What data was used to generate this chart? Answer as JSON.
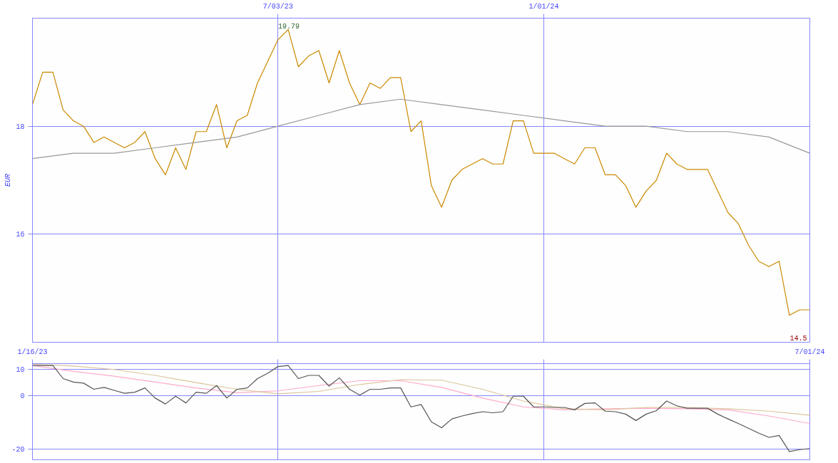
{
  "chart_data": [
    {
      "type": "line",
      "ylabel": "EUR",
      "x": [
        "2023-01-16",
        "2023-01-23",
        "2023-01-30",
        "2023-02-06",
        "2023-02-13",
        "2023-02-20",
        "2023-02-27",
        "2023-03-06",
        "2023-03-13",
        "2023-03-20",
        "2023-03-27",
        "2023-04-03",
        "2023-04-10",
        "2023-04-17",
        "2023-04-24",
        "2023-05-01",
        "2023-05-08",
        "2023-05-15",
        "2023-05-22",
        "2023-05-29",
        "2023-06-05",
        "2023-06-12",
        "2023-06-19",
        "2023-06-26",
        "2023-07-03",
        "2023-07-10",
        "2023-07-17",
        "2023-07-24",
        "2023-07-31",
        "2023-08-07",
        "2023-08-14",
        "2023-08-21",
        "2023-08-28",
        "2023-09-04",
        "2023-09-11",
        "2023-09-18",
        "2023-09-25",
        "2023-10-02",
        "2023-10-09",
        "2023-10-16",
        "2023-10-23",
        "2023-10-30",
        "2023-11-06",
        "2023-11-13",
        "2023-11-20",
        "2023-11-27",
        "2023-12-04",
        "2023-12-11",
        "2023-12-18",
        "2023-12-25",
        "2024-01-01",
        "2024-01-08",
        "2024-01-15",
        "2024-01-22",
        "2024-01-29",
        "2024-02-05",
        "2024-02-12",
        "2024-02-19",
        "2024-02-26",
        "2024-03-04",
        "2024-03-11",
        "2024-03-18",
        "2024-03-25",
        "2024-04-01",
        "2024-04-08",
        "2024-04-15",
        "2024-04-22",
        "2024-04-29",
        "2024-05-06",
        "2024-05-13",
        "2024-05-20",
        "2024-05-27",
        "2024-06-03",
        "2024-06-10",
        "2024-06-17",
        "2024-06-24",
        "2024-07-01"
      ],
      "series": [
        {
          "color": "#cc8800",
          "values": [
            18.4,
            19.0,
            19.0,
            18.3,
            18.1,
            18.0,
            17.7,
            17.8,
            17.7,
            17.6,
            17.7,
            17.9,
            17.4,
            17.1,
            17.6,
            17.2,
            17.9,
            17.9,
            18.4,
            17.6,
            18.1,
            18.2,
            18.8,
            19.2,
            19.6,
            19.79,
            19.1,
            19.3,
            19.4,
            18.8,
            19.4,
            18.8,
            18.4,
            18.8,
            18.7,
            18.9,
            18.9,
            17.9,
            18.1,
            16.9,
            16.5,
            17.0,
            17.2,
            17.3,
            17.4,
            17.3,
            17.3,
            18.1,
            18.1,
            17.5,
            17.5,
            17.5,
            17.4,
            17.3,
            17.6,
            17.6,
            17.1,
            17.1,
            16.9,
            16.5,
            16.8,
            17.0,
            17.5,
            17.3,
            17.2,
            17.2,
            17.2,
            16.8,
            16.4,
            16.2,
            15.8,
            15.5,
            15.4,
            15.5,
            14.5,
            14.6,
            14.6
          ]
        },
        {
          "color": "#999999",
          "x": [
            "2023-01-16",
            "2023-02-13",
            "2023-03-13",
            "2023-04-10",
            "2023-05-08",
            "2023-06-05",
            "2023-07-03",
            "2023-07-31",
            "2023-08-28",
            "2023-09-25",
            "2023-10-23",
            "2023-11-20",
            "2023-12-18",
            "2024-01-15",
            "2024-02-12",
            "2024-03-11",
            "2024-04-08",
            "2024-05-06",
            "2024-06-03",
            "2024-07-01"
          ],
          "values": [
            17.4,
            17.5,
            17.5,
            17.6,
            17.7,
            17.8,
            18.0,
            18.2,
            18.4,
            18.5,
            18.4,
            18.3,
            18.2,
            18.1,
            18.0,
            18.0,
            17.9,
            17.9,
            17.8,
            17.5
          ]
        }
      ],
      "xlim": [
        "2023-01-16",
        "2024-07-01"
      ],
      "ylim": [
        14.0,
        20.0
      ],
      "xticks": [
        {
          "value": "2023-07-03",
          "label": "7/03/23"
        },
        {
          "value": "2024-01-01",
          "label": "1/01/24"
        }
      ],
      "yticks": [
        16,
        18
      ],
      "grid": true,
      "annotations": [
        {
          "text": "19.79",
          "x": "2023-07-10",
          "y": 19.79
        },
        "14.5"
      ]
    },
    {
      "type": "line",
      "x": [
        "2023-01-16",
        "2023-01-23",
        "2023-01-30",
        "2023-02-06",
        "2023-02-13",
        "2023-02-20",
        "2023-02-27",
        "2023-03-06",
        "2023-03-13",
        "2023-03-20",
        "2023-03-27",
        "2023-04-03",
        "2023-04-10",
        "2023-04-17",
        "2023-04-24",
        "2023-05-01",
        "2023-05-08",
        "2023-05-15",
        "2023-05-22",
        "2023-05-29",
        "2023-06-05",
        "2023-06-12",
        "2023-06-19",
        "2023-06-26",
        "2023-07-03",
        "2023-07-10",
        "2023-07-17",
        "2023-07-24",
        "2023-07-31",
        "2023-08-07",
        "2023-08-14",
        "2023-08-21",
        "2023-08-28",
        "2023-09-04",
        "2023-09-11",
        "2023-09-18",
        "2023-09-25",
        "2023-10-02",
        "2023-10-09",
        "2023-10-16",
        "2023-10-23",
        "2023-10-30",
        "2023-11-06",
        "2023-11-13",
        "2023-11-20",
        "2023-11-27",
        "2023-12-04",
        "2023-12-11",
        "2023-12-18",
        "2023-12-25",
        "2024-01-01",
        "2024-01-08",
        "2024-01-15",
        "2024-01-22",
        "2024-01-29",
        "2024-02-05",
        "2024-02-12",
        "2024-02-19",
        "2024-02-26",
        "2024-03-04",
        "2024-03-11",
        "2024-03-18",
        "2024-03-25",
        "2024-04-01",
        "2024-04-08",
        "2024-04-15",
        "2024-04-22",
        "2024-04-29",
        "2024-05-06",
        "2024-05-13",
        "2024-05-20",
        "2024-05-27",
        "2024-06-03",
        "2024-06-10",
        "2024-06-17",
        "2024-06-24",
        "2024-07-01"
      ],
      "series": [
        {
          "color": "#ffaacc",
          "x": [
            "2023-01-16",
            "2023-02-13",
            "2023-03-13",
            "2023-04-10",
            "2023-05-08",
            "2023-06-05",
            "2023-07-03",
            "2023-07-31",
            "2023-08-28",
            "2023-09-25",
            "2023-10-23",
            "2023-11-20",
            "2023-12-18",
            "2024-01-15",
            "2024-02-12",
            "2024-03-11",
            "2024-04-08",
            "2024-05-06",
            "2024-06-03",
            "2024-07-01"
          ],
          "values": [
            11.3,
            9.1,
            7.3,
            5.1,
            2.9,
            1.1,
            1.8,
            3.8,
            5.6,
            5.6,
            3.1,
            -0.9,
            -4.2,
            -5.3,
            -4.9,
            -4.7,
            -4.9,
            -5.3,
            -7.6,
            -10.4
          ]
        },
        {
          "color": "#ddc499",
          "x": [
            "2023-01-16",
            "2023-02-13",
            "2023-03-13",
            "2023-04-10",
            "2023-05-08",
            "2023-06-05",
            "2023-07-03",
            "2023-07-31",
            "2023-08-28",
            "2023-09-25",
            "2023-10-23",
            "2023-11-20",
            "2023-12-18",
            "2024-01-15",
            "2024-02-12",
            "2024-03-11",
            "2024-04-08",
            "2024-05-06",
            "2024-06-03",
            "2024-07-01"
          ],
          "values": [
            11.8,
            11.1,
            9.8,
            7.6,
            4.9,
            2.4,
            0.7,
            1.6,
            4.2,
            6.0,
            5.8,
            2.4,
            -2.0,
            -4.9,
            -5.3,
            -4.4,
            -4.4,
            -4.9,
            -5.8,
            -7.3
          ]
        },
        {
          "color": "#555555",
          "values": [
            11.3,
            11.3,
            11.3,
            6.4,
            5.1,
            4.7,
            2.4,
            3.1,
            2.0,
            0.9,
            1.3,
            2.9,
            -0.9,
            -3.1,
            -0.2,
            -2.7,
            1.3,
            0.9,
            3.8,
            -0.9,
            2.4,
            2.9,
            6.4,
            8.4,
            10.9,
            11.3,
            6.4,
            7.6,
            7.6,
            3.6,
            6.7,
            2.4,
            0.2,
            2.4,
            2.4,
            2.9,
            2.9,
            -4.2,
            -3.3,
            -9.8,
            -12.0,
            -8.7,
            -7.6,
            -6.7,
            -6.0,
            -6.4,
            -6.0,
            -0.2,
            -0.2,
            -4.2,
            -4.2,
            -4.4,
            -4.4,
            -5.3,
            -2.9,
            -2.7,
            -5.8,
            -6.0,
            -6.9,
            -9.3,
            -6.9,
            -5.6,
            -2.0,
            -3.8,
            -4.7,
            -4.7,
            -4.7,
            -6.9,
            -8.7,
            -10.4,
            -12.2,
            -14.0,
            -15.6,
            -14.9,
            -20.9,
            -20.2,
            -19.8
          ]
        }
      ],
      "xlim": [
        "2023-01-16",
        "2024-07-01"
      ],
      "ylim": [
        -24,
        12
      ],
      "xticks": [
        {
          "value": "2023-01-16",
          "label": "1/16/23"
        },
        {
          "value": "2023-07-03",
          "label": null
        },
        {
          "value": "2024-01-01",
          "label": null
        },
        {
          "value": "2024-07-01",
          "label": "7/01/24"
        }
      ],
      "yticks": [
        -20,
        0,
        10
      ],
      "grid": true
    }
  ]
}
